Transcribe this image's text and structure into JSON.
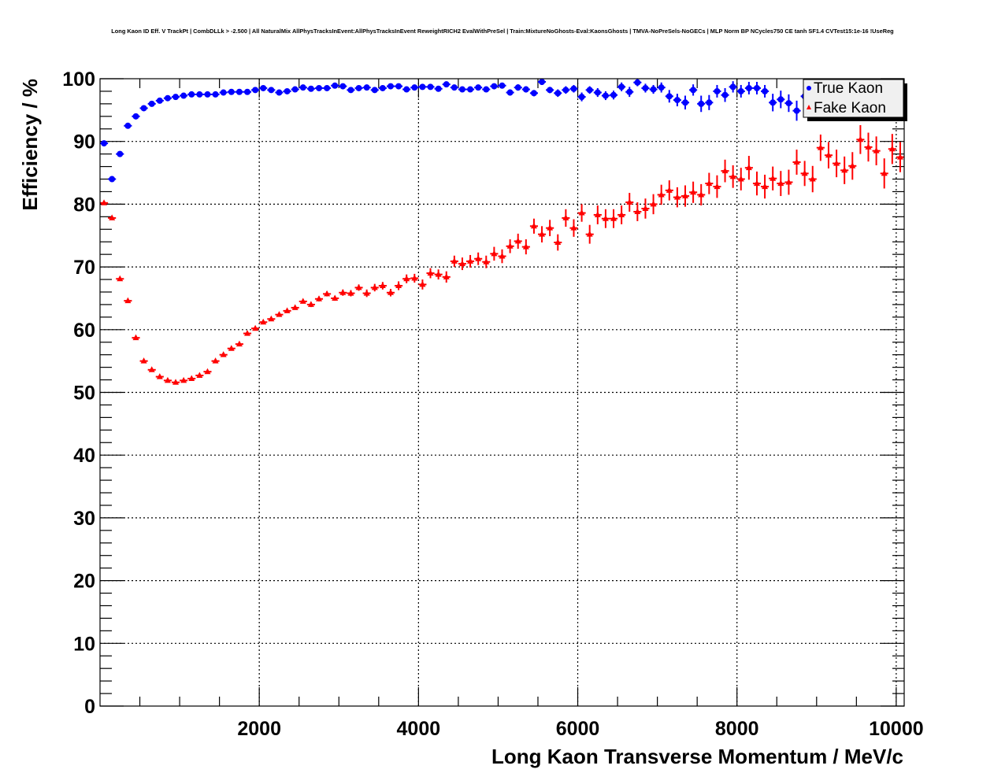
{
  "chart_data": {
    "type": "scatter",
    "title": "Long Kaon ID Eff. V TrackPt | CombDLLk > -2.500 | All NaturalMix AllPhysTracksInEvent:AllPhysTracksInEvent ReweightRICH2 EvalWithPreSel | Train:MixtureNoGhosts-Eval:KaonsGhosts | TMVA-NoPreSels-NoGECs | MLP Norm BP NCycles750 CE tanh SF1.4 CVTest15:1e-16 !UseReg",
    "xlabel": "Long Kaon Transverse Momentum / MeV/c",
    "ylabel": "Efficiency / %",
    "xlim": [
      0,
      10100
    ],
    "ylim": [
      0,
      100
    ],
    "bin_width": 100,
    "grid": true,
    "legend_position": "top-right",
    "x_ticks": [
      2000,
      4000,
      6000,
      8000,
      10000
    ],
    "x_tick_labels": [
      "2000",
      "4000",
      "6000",
      "8000",
      "10000"
    ],
    "y_ticks": [
      0,
      10,
      20,
      30,
      40,
      50,
      60,
      70,
      80,
      90,
      100
    ],
    "y_tick_labels": [
      "0",
      "10",
      "20",
      "30",
      "40",
      "50",
      "60",
      "70",
      "80",
      "90",
      "100"
    ],
    "series": [
      {
        "name": "True Kaon",
        "color": "#0000ff",
        "marker": "circle",
        "values": [
          89.7,
          84.0,
          88.0,
          92.5,
          94.0,
          95.3,
          96.0,
          96.5,
          96.9,
          97.1,
          97.3,
          97.5,
          97.5,
          97.5,
          97.5,
          97.8,
          97.9,
          97.9,
          97.9,
          98.2,
          98.5,
          98.2,
          97.8,
          98.0,
          98.3,
          98.6,
          98.4,
          98.5,
          98.5,
          98.9,
          98.8,
          98.2,
          98.5,
          98.6,
          98.2,
          98.5,
          98.8,
          98.8,
          98.3,
          98.6,
          98.7,
          98.7,
          98.4,
          99.1,
          98.6,
          98.3,
          98.3,
          98.6,
          98.3,
          98.8,
          98.9,
          97.8,
          98.6,
          98.3,
          97.7,
          99.5,
          98.2,
          97.7,
          98.2,
          98.4,
          97.1,
          98.2,
          97.8,
          97.3,
          97.4,
          98.7,
          97.9,
          99.4,
          98.5,
          98.3,
          98.6,
          97.2,
          96.6,
          96.2,
          98.2,
          96.0,
          96.2,
          98.0,
          97.4,
          98.7,
          98.0,
          98.5,
          98.5,
          98.0,
          96.2,
          96.7,
          96.1,
          94.9,
          97.2,
          96.8,
          97.5,
          96.3,
          97.0,
          96.0,
          97.8,
          96.5,
          95.5,
          97.0,
          96.2,
          95.8,
          96.5
        ],
        "errors": [
          0.3,
          0.3,
          0.3,
          0.3,
          0.2,
          0.2,
          0.2,
          0.2,
          0.2,
          0.2,
          0.2,
          0.2,
          0.2,
          0.2,
          0.2,
          0.2,
          0.2,
          0.2,
          0.2,
          0.2,
          0.2,
          0.2,
          0.2,
          0.2,
          0.2,
          0.2,
          0.2,
          0.2,
          0.2,
          0.2,
          0.3,
          0.3,
          0.3,
          0.3,
          0.3,
          0.3,
          0.3,
          0.3,
          0.3,
          0.3,
          0.3,
          0.3,
          0.3,
          0.3,
          0.3,
          0.3,
          0.4,
          0.4,
          0.4,
          0.4,
          0.4,
          0.5,
          0.5,
          0.5,
          0.5,
          0.5,
          0.5,
          0.6,
          0.6,
          0.6,
          0.7,
          0.6,
          0.7,
          0.7,
          0.7,
          0.7,
          0.8,
          0.6,
          0.7,
          0.7,
          0.8,
          1.0,
          1.0,
          1.1,
          0.9,
          1.3,
          1.2,
          1.0,
          1.1,
          0.9,
          1.0,
          1.0,
          1.0,
          1.0,
          1.4,
          1.4,
          1.4,
          1.6,
          1.4,
          1.4,
          1.4,
          1.5,
          1.5,
          1.5,
          1.4,
          1.5,
          1.6,
          1.5,
          1.6,
          1.6,
          1.6
        ]
      },
      {
        "name": "Fake Kaon",
        "color": "#ff0000",
        "marker": "triangle",
        "values": [
          80.2,
          77.8,
          68.1,
          64.6,
          58.7,
          55.0,
          53.6,
          52.5,
          51.9,
          51.6,
          51.9,
          52.2,
          52.7,
          53.3,
          55.0,
          56.0,
          57.0,
          57.7,
          59.4,
          60.2,
          61.2,
          61.7,
          62.4,
          63.0,
          63.5,
          64.5,
          64.0,
          64.9,
          65.7,
          65.0,
          65.9,
          65.8,
          66.7,
          65.8,
          66.7,
          67.0,
          65.9,
          67.0,
          68.1,
          68.2,
          67.2,
          69.0,
          68.8,
          68.4,
          70.9,
          70.5,
          70.9,
          71.3,
          70.8,
          72.1,
          71.7,
          73.3,
          74.1,
          73.2,
          76.5,
          75.2,
          76.2,
          73.9,
          77.8,
          76.2,
          78.6,
          75.2,
          78.3,
          77.7,
          77.7,
          78.3,
          80.3,
          78.8,
          79.3,
          80.0,
          81.5,
          82.2,
          81.1,
          81.3,
          81.9,
          81.5,
          83.3,
          82.8,
          85.3,
          84.4,
          84.0,
          85.8,
          83.3,
          82.8,
          84.1,
          83.3,
          83.5,
          86.7,
          84.9,
          84.0,
          89.0,
          87.8,
          86.5,
          85.4,
          86.1,
          90.3,
          89.1,
          88.5,
          84.9,
          88.8,
          87.5
        ],
        "errors": [
          0.2,
          0.2,
          0.2,
          0.2,
          0.2,
          0.2,
          0.2,
          0.2,
          0.2,
          0.2,
          0.2,
          0.2,
          0.2,
          0.2,
          0.2,
          0.2,
          0.3,
          0.3,
          0.3,
          0.3,
          0.3,
          0.3,
          0.3,
          0.3,
          0.3,
          0.3,
          0.4,
          0.4,
          0.4,
          0.4,
          0.5,
          0.5,
          0.5,
          0.6,
          0.6,
          0.6,
          0.6,
          0.7,
          0.7,
          0.7,
          0.8,
          0.8,
          0.8,
          0.9,
          0.9,
          1.0,
          1.0,
          1.0,
          1.0,
          1.1,
          1.1,
          1.1,
          1.2,
          1.2,
          1.2,
          1.3,
          1.3,
          1.3,
          1.4,
          1.4,
          1.4,
          1.5,
          1.5,
          1.5,
          1.5,
          1.5,
          1.5,
          1.5,
          1.6,
          1.6,
          1.6,
          1.6,
          1.6,
          1.7,
          1.7,
          1.7,
          1.7,
          1.8,
          1.8,
          1.8,
          1.8,
          1.9,
          1.9,
          1.9,
          1.9,
          2.0,
          2.0,
          2.0,
          2.0,
          2.1,
          2.1,
          2.1,
          2.2,
          2.2,
          2.2,
          2.3,
          2.3,
          2.3,
          2.4,
          2.4,
          2.4
        ]
      }
    ]
  }
}
